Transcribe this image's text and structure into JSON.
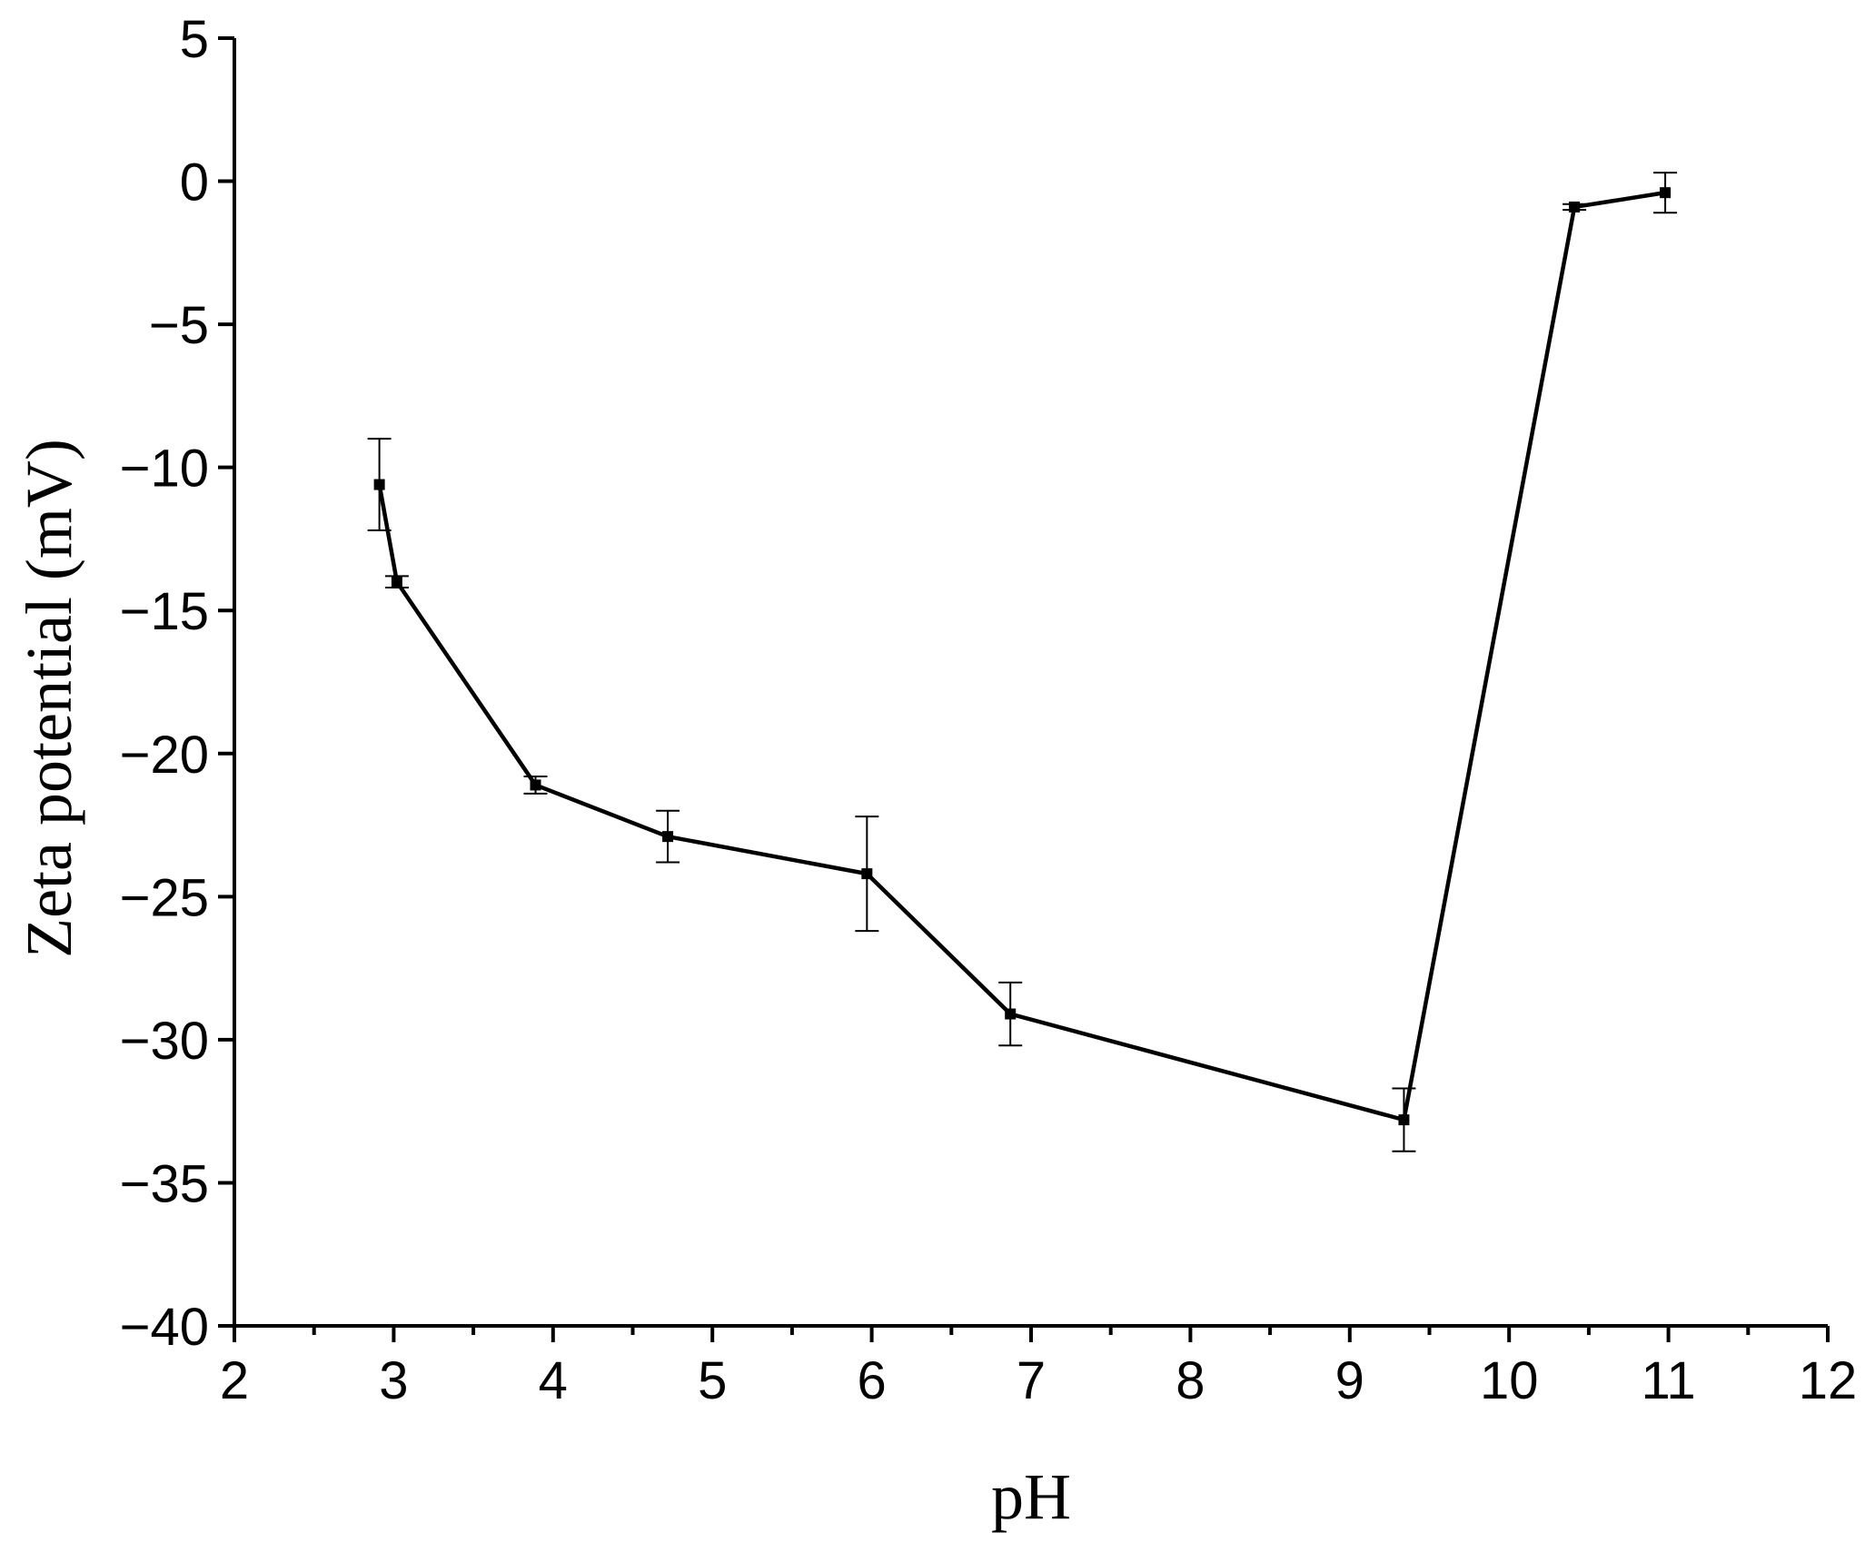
{
  "chart_data": {
    "type": "line",
    "title": "",
    "xlabel": "pH",
    "ylabel": "Zeta potential (mV)",
    "xlim": [
      2,
      12
    ],
    "ylim": [
      -40,
      5
    ],
    "x_ticks": [
      2,
      3,
      4,
      5,
      6,
      7,
      8,
      9,
      10,
      11,
      12
    ],
    "y_ticks": [
      5,
      0,
      -5,
      -10,
      -15,
      -20,
      -25,
      -30,
      -35,
      -40
    ],
    "x_tick_labels": [
      "2",
      "3",
      "4",
      "5",
      "6",
      "7",
      "8",
      "9",
      "10",
      "11",
      "12"
    ],
    "y_tick_labels": [
      "5",
      "0",
      "−5",
      "−10",
      "−15",
      "−20",
      "−25",
      "−30",
      "−35",
      "−40"
    ],
    "grid": false,
    "marker": "square",
    "line_color": "#000000",
    "series": [
      {
        "x": [
          2.91,
          3.02,
          3.89,
          4.72,
          5.97,
          6.87,
          9.34,
          10.41,
          10.98
        ],
        "y": [
          -10.6,
          -14.0,
          -21.1,
          -22.9,
          -24.2,
          -29.1,
          -32.8,
          -0.9,
          -0.4
        ],
        "error": [
          1.6,
          0.2,
          0.3,
          0.9,
          2.0,
          1.1,
          1.1,
          0.1,
          0.7
        ]
      }
    ]
  }
}
